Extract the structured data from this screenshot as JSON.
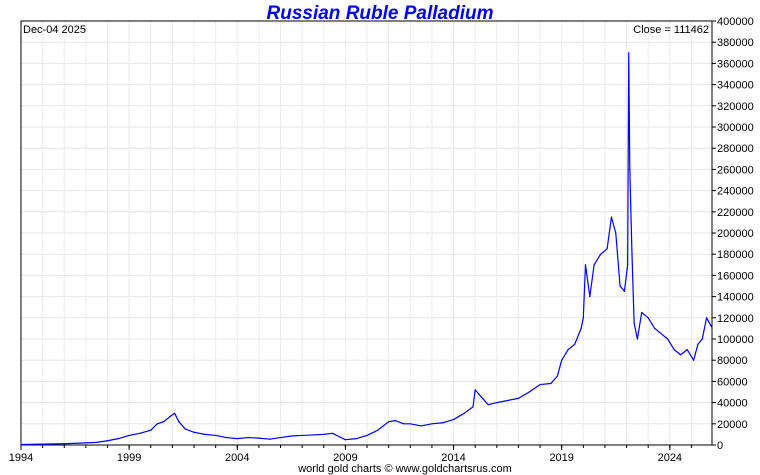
{
  "chart_data": {
    "type": "line",
    "title": "Russian Ruble Palladium",
    "date_label": "Dec-04  2025",
    "close_label": "Close = 111462",
    "footer": "world gold charts © www.goldchartsrus.com",
    "xlabel": "",
    "ylabel": "",
    "xlim": [
      1994,
      2025.95
    ],
    "ylim": [
      0,
      400000
    ],
    "x_ticks": [
      "1994",
      "1999",
      "2004",
      "2009",
      "2014",
      "2019",
      "2024"
    ],
    "y_ticks": [
      "0",
      "20000",
      "40000",
      "60000",
      "80000",
      "100000",
      "120000",
      "140000",
      "160000",
      "180000",
      "200000",
      "220000",
      "240000",
      "260000",
      "280000",
      "300000",
      "320000",
      "340000",
      "360000",
      "380000",
      "400000"
    ],
    "grid": true,
    "line_color": "#0000ff",
    "series": [
      {
        "x": [
          1994.0,
          1995.0,
          1996.0,
          1997.0,
          1997.5,
          1998.0,
          1998.5,
          1999.0,
          1999.5,
          2000.0,
          2000.3,
          2000.6,
          2000.9,
          2001.1,
          2001.3,
          2001.6,
          2002.0,
          2002.5,
          2003.0,
          2003.5,
          2004.0,
          2004.5,
          2005.0,
          2005.5,
          2006.0,
          2006.5,
          2007.0,
          2007.5,
          2008.0,
          2008.4,
          2008.7,
          2009.0,
          2009.5,
          2010.0,
          2010.5,
          2011.0,
          2011.3,
          2011.7,
          2012.0,
          2012.5,
          2013.0,
          2013.5,
          2014.0,
          2014.5,
          2014.9,
          2015.0,
          2015.3,
          2015.6,
          2016.0,
          2016.5,
          2017.0,
          2017.5,
          2018.0,
          2018.5,
          2018.8,
          2019.0,
          2019.3,
          2019.6,
          2019.9,
          2020.0,
          2020.1,
          2020.3,
          2020.5,
          2020.8,
          2021.1,
          2021.3,
          2021.5,
          2021.7,
          2021.9,
          2022.05,
          2022.1,
          2022.15,
          2022.25,
          2022.35,
          2022.5,
          2022.7,
          2023.0,
          2023.3,
          2023.6,
          2023.9,
          2024.2,
          2024.5,
          2024.8,
          2025.1,
          2025.3,
          2025.5,
          2025.7,
          2025.93
        ],
        "y": [
          500,
          800,
          1200,
          2000,
          2500,
          4000,
          6000,
          9000,
          11000,
          14000,
          20000,
          22000,
          27000,
          30000,
          22000,
          15000,
          12000,
          10000,
          9000,
          7000,
          6000,
          7000,
          6500,
          5500,
          7000,
          8500,
          9000,
          9500,
          10000,
          11000,
          8000,
          5000,
          6000,
          9000,
          14000,
          22000,
          23000,
          20000,
          20000,
          18000,
          20000,
          21000,
          24000,
          30000,
          36000,
          52000,
          45000,
          38000,
          40000,
          42000,
          44000,
          50000,
          57000,
          58000,
          65000,
          80000,
          90000,
          95000,
          110000,
          120000,
          170000,
          140000,
          170000,
          180000,
          185000,
          215000,
          200000,
          150000,
          145000,
          170000,
          370000,
          260000,
          180000,
          115000,
          100000,
          125000,
          120000,
          110000,
          105000,
          100000,
          90000,
          85000,
          90000,
          80000,
          95000,
          100000,
          120000,
          111462
        ]
      }
    ]
  }
}
